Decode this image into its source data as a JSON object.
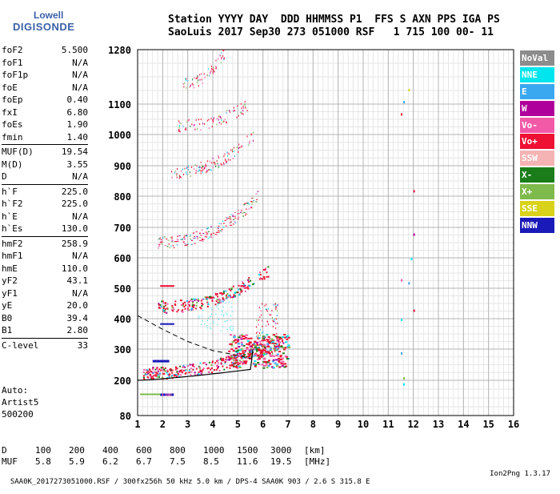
{
  "logo": {
    "line1": "Lowell",
    "line2": "DIGISONDE"
  },
  "header": {
    "line1": "Station YYYY DAY  DDD HHMMSS P1  FFS S AXN PPS IGA PS",
    "line2": "SaoLuis 2017 Sep30 273 051000 RSF   1 715 100 00- 11"
  },
  "params": {
    "g1": [
      {
        "k": "foF2",
        "v": "5.500"
      },
      {
        "k": "foF1",
        "v": "N/A"
      },
      {
        "k": "foF1p",
        "v": "N/A"
      },
      {
        "k": "foE",
        "v": "N/A"
      },
      {
        "k": "foEp",
        "v": "0.40"
      },
      {
        "k": "fxI",
        "v": "6.80"
      },
      {
        "k": "foEs",
        "v": "1.90"
      },
      {
        "k": "fmin",
        "v": "1.40"
      }
    ],
    "g2": [
      {
        "k": "MUF(D)",
        "v": "19.54"
      },
      {
        "k": "M(D)",
        "v": "3.55"
      },
      {
        "k": "D",
        "v": "N/A"
      }
    ],
    "g3": [
      {
        "k": "h`F",
        "v": "225.0"
      },
      {
        "k": "h`F2",
        "v": "225.0"
      },
      {
        "k": "h`E",
        "v": "N/A"
      },
      {
        "k": "h`Es",
        "v": "130.0"
      }
    ],
    "g4": [
      {
        "k": "hmF2",
        "v": "258.9"
      },
      {
        "k": "hmF1",
        "v": "N/A"
      },
      {
        "k": "hmE",
        "v": "110.0"
      },
      {
        "k": "yF2",
        "v": "43.1"
      },
      {
        "k": "yF1",
        "v": "N/A"
      },
      {
        "k": "yE",
        "v": "20.0"
      },
      {
        "k": "B0",
        "v": "39.4"
      },
      {
        "k": "B1",
        "v": "2.80"
      }
    ],
    "g5": [
      {
        "k": "C-level",
        "v": "33"
      }
    ]
  },
  "auto": {
    "label": "Auto:",
    "software": "Artist5",
    "version": "500200"
  },
  "plot": {
    "y_ticks": [
      "1280",
      "1100",
      "1000",
      "900",
      "800",
      "700",
      "600",
      "500",
      "400",
      "300",
      "200",
      "80"
    ],
    "y_tick_values": [
      1280,
      1100,
      1000,
      900,
      800,
      700,
      600,
      500,
      400,
      300,
      200,
      80
    ],
    "x_ticks": [
      "1",
      "2",
      "3",
      "4",
      "5",
      "6",
      "7",
      "8",
      "9",
      "10",
      "11",
      "12",
      "13",
      "14",
      "15",
      "16"
    ]
  },
  "legend": [
    {
      "label": "NoVal",
      "color": "#8c8c8c"
    },
    {
      "label": "NNE",
      "color": "#00e5ee"
    },
    {
      "label": "E",
      "color": "#3aa8f0"
    },
    {
      "label": "W",
      "color": "#b0009b"
    },
    {
      "label": "Vo-",
      "color": "#f25aa8"
    },
    {
      "label": "Vo+",
      "color": "#ee1133"
    },
    {
      "label": "SSW",
      "color": "#f5b3b3"
    },
    {
      "label": "X-",
      "color": "#1a7d1a"
    },
    {
      "label": "X+",
      "color": "#7fba4c"
    },
    {
      "label": "SSE",
      "color": "#d9d21a"
    },
    {
      "label": "NNW",
      "color": "#1a1ab8"
    }
  ],
  "muf_table": {
    "d_label": "D",
    "muf_label": "MUF",
    "distances": [
      "100",
      "200",
      "400",
      "600",
      "800",
      "1000",
      "1500",
      "3000"
    ],
    "distance_unit": "[km]",
    "mufs": [
      "5.8",
      "5.9",
      "6.2",
      "6.7",
      "7.5",
      "8.5",
      "11.6",
      "19.5"
    ],
    "muf_unit": "[MHz]"
  },
  "footer": {
    "left": "SAA0K_2017273051000.RSF / 300fx256h 50 kHz 5.0 km / DPS-4 SAA0K 903 / 2.6 S 315.8 E",
    "right": "Ion2Png 1.3.17"
  }
}
